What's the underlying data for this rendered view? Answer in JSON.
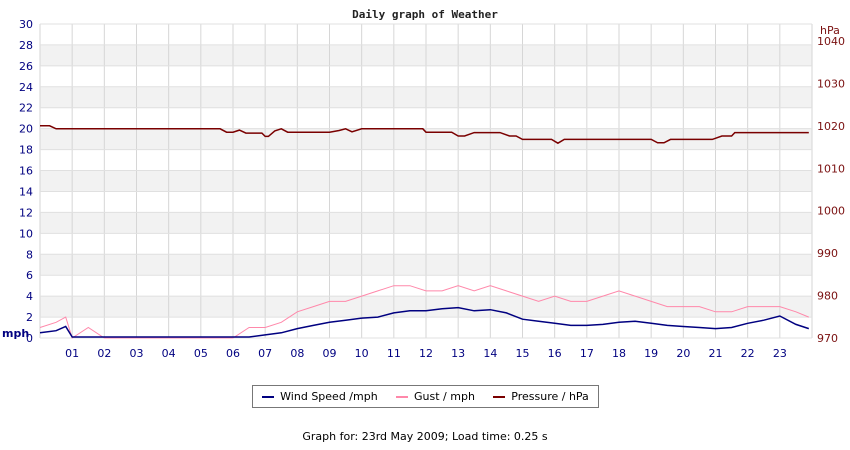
{
  "chart_data": {
    "type": "line",
    "title": "Daily graph of Weather",
    "x_ticks": [
      "01",
      "02",
      "03",
      "04",
      "05",
      "06",
      "07",
      "08",
      "09",
      "10",
      "11",
      "12",
      "13",
      "14",
      "15",
      "16",
      "17",
      "18",
      "19",
      "20",
      "21",
      "22",
      "23"
    ],
    "y_left": {
      "unit": "mph",
      "min": 0,
      "max": 30,
      "ticks": [
        0,
        2,
        4,
        6,
        8,
        10,
        12,
        14,
        16,
        18,
        20,
        22,
        24,
        26,
        28,
        30
      ]
    },
    "y_right": {
      "unit": "hPa",
      "min": 970,
      "max": 1044,
      "ticks": [
        970,
        980,
        990,
        1000,
        1010,
        1020,
        1030,
        1040
      ]
    },
    "grid": true,
    "legend_position": "bottom",
    "series": [
      {
        "name": "Wind Speed /mph",
        "axis": "left",
        "color": "#000080",
        "x": [
          0,
          0.5,
          0.8,
          1.0,
          1.5,
          2,
          3,
          4,
          5,
          6,
          6.5,
          7,
          7.5,
          8,
          8.5,
          9,
          9.5,
          10,
          10.5,
          11,
          11.5,
          12,
          12.5,
          13,
          13.5,
          14,
          14.5,
          15,
          15.5,
          16,
          16.5,
          17,
          17.5,
          18,
          18.5,
          19,
          19.5,
          20,
          20.5,
          21,
          21.5,
          22,
          22.5,
          23,
          23.5,
          23.9
        ],
        "values": [
          0.5,
          0.7,
          1.1,
          0.1,
          0.1,
          0.1,
          0.1,
          0.1,
          0.1,
          0.1,
          0.1,
          0.3,
          0.5,
          0.9,
          1.2,
          1.5,
          1.7,
          1.9,
          2.0,
          2.4,
          2.6,
          2.6,
          2.8,
          2.9,
          2.6,
          2.7,
          2.4,
          1.8,
          1.6,
          1.4,
          1.2,
          1.2,
          1.3,
          1.5,
          1.6,
          1.4,
          1.2,
          1.1,
          1.0,
          0.9,
          1.0,
          1.4,
          1.7,
          2.1,
          1.3,
          0.9
        ]
      },
      {
        "name": "Gust / mph",
        "axis": "left",
        "color": "#ff88aa",
        "x": [
          0,
          0.5,
          0.8,
          1.0,
          1.5,
          2,
          3,
          4,
          5,
          6,
          6.5,
          7,
          7.5,
          8,
          8.5,
          9,
          9.5,
          10,
          10.5,
          11,
          11.5,
          12,
          12.5,
          13,
          13.5,
          14,
          14.5,
          15,
          15.5,
          16,
          16.5,
          17,
          17.5,
          18,
          18.5,
          19,
          19.5,
          20,
          20.5,
          21,
          21.5,
          22,
          22.5,
          23,
          23.5,
          23.9
        ],
        "values": [
          1.0,
          1.5,
          2.0,
          0,
          1.0,
          0,
          0,
          0,
          0,
          0,
          1.0,
          1.0,
          1.5,
          2.5,
          3.0,
          3.5,
          3.5,
          4.0,
          4.5,
          5.0,
          5.0,
          4.5,
          4.5,
          5.0,
          4.5,
          5.0,
          4.5,
          4.0,
          3.5,
          4.0,
          3.5,
          3.5,
          4.0,
          4.5,
          4.0,
          3.5,
          3.0,
          3.0,
          3.0,
          2.5,
          2.5,
          3.0,
          3.0,
          3.0,
          2.5,
          2.0
        ]
      },
      {
        "name": "Pressure / hPa",
        "axis": "right",
        "color": "#7a0000",
        "x": [
          0,
          0.3,
          0.5,
          1,
          2,
          3,
          4,
          5,
          5.6,
          5.8,
          6.0,
          6.2,
          6.4,
          6.6,
          6.9,
          7.0,
          7.1,
          7.3,
          7.5,
          7.7,
          8.0,
          8.5,
          9.0,
          9.3,
          9.5,
          9.7,
          10,
          11,
          11.5,
          11.9,
          12,
          12.5,
          12.8,
          13,
          13.2,
          13.5,
          14,
          14.3,
          14.6,
          14.8,
          15,
          15.5,
          15.9,
          16.1,
          16.3,
          16.5,
          17,
          17.5,
          18,
          18.5,
          19,
          19.2,
          19.4,
          19.6,
          20,
          20.5,
          20.9,
          21.2,
          21.5,
          21.6,
          22,
          22.5,
          23,
          23.9
        ],
        "values": [
          1020,
          1020,
          1019.3,
          1019.3,
          1019.3,
          1019.3,
          1019.3,
          1019.3,
          1019.3,
          1018.5,
          1018.5,
          1019,
          1018.3,
          1018.3,
          1018.3,
          1017.5,
          1017.5,
          1018.8,
          1019.3,
          1018.5,
          1018.5,
          1018.5,
          1018.5,
          1018.9,
          1019.3,
          1018.6,
          1019.3,
          1019.3,
          1019.3,
          1019.3,
          1018.5,
          1018.5,
          1018.5,
          1017.6,
          1017.6,
          1018.4,
          1018.4,
          1018.4,
          1017.6,
          1017.6,
          1016.8,
          1016.8,
          1016.8,
          1015.9,
          1016.8,
          1016.8,
          1016.8,
          1016.8,
          1016.8,
          1016.8,
          1016.8,
          1016.0,
          1016.0,
          1016.8,
          1016.8,
          1016.8,
          1016.8,
          1017.6,
          1017.6,
          1018.4,
          1018.4,
          1018.4,
          1018.4,
          1018.4
        ]
      }
    ]
  },
  "legend": {
    "wind": "Wind Speed /mph",
    "gust": "Gust / mph",
    "pressure": "Pressure / hPa"
  },
  "footer": "Graph for: 23rd May 2009; Load time: 0.25 s"
}
